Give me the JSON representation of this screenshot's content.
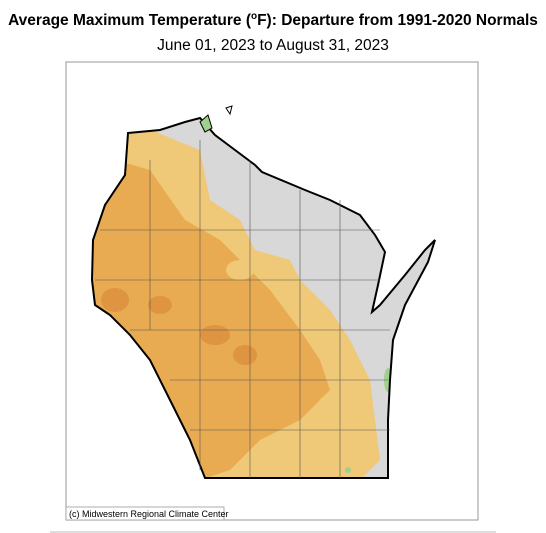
{
  "header": {
    "title_start": "Average Maximum Temperature (",
    "title_sup": "o",
    "title_end": "F): Departure from 1991-2020 Normals",
    "subtitle": "June 01, 2023 to August 31, 2023"
  },
  "map": {
    "credit": "(c) Midwestern Regional Climate Center"
  }
}
